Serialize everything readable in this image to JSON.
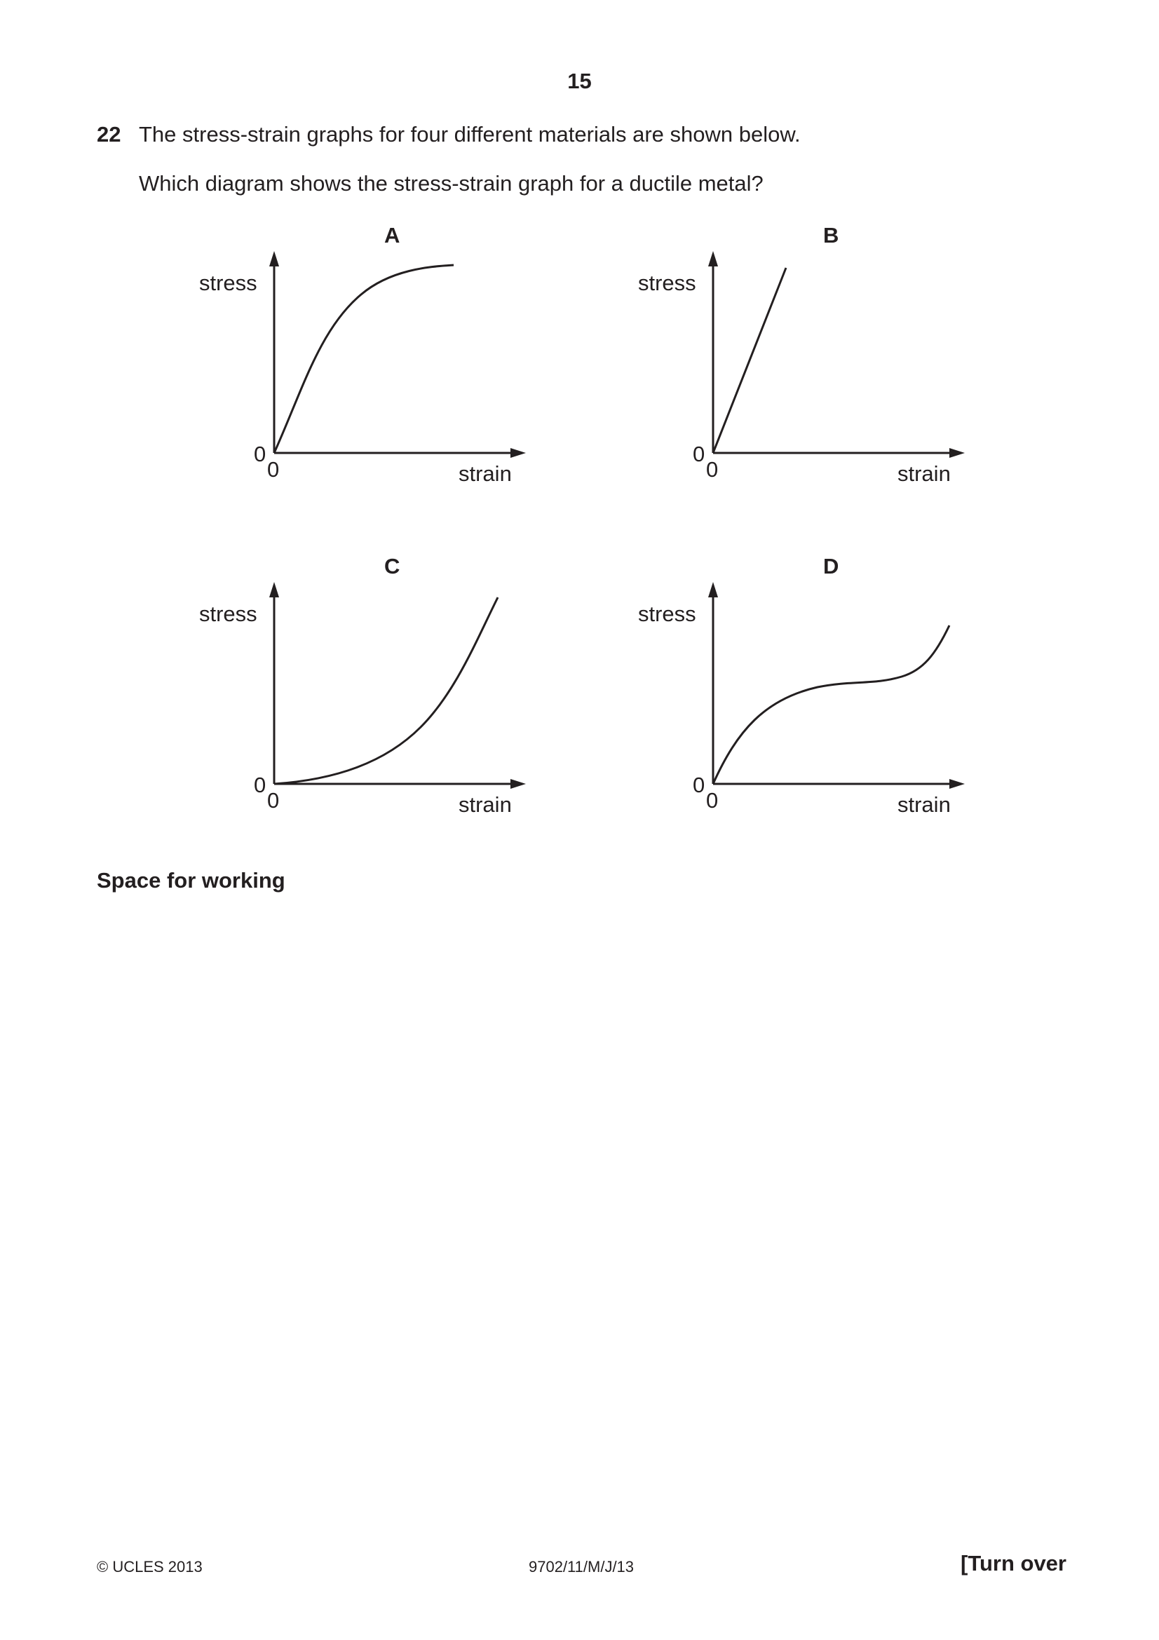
{
  "page": {
    "number": "15",
    "question_number": "22",
    "question_text": "The stress-strain graphs for four different materials are shown below.",
    "question_prompt": "Which diagram shows the stress-strain graph for a ductile metal?",
    "space_for_working": "Space for working"
  },
  "diagrams": [
    {
      "option": "A",
      "y_label": "stress",
      "x_label": "strain",
      "y_origin": "0",
      "x_origin": "0",
      "shape": "rises steeply then levels off"
    },
    {
      "option": "B",
      "y_label": "stress",
      "x_label": "strain",
      "y_origin": "0",
      "x_origin": "0",
      "shape": "straight line through origin"
    },
    {
      "option": "C",
      "y_label": "stress",
      "x_label": "strain",
      "y_origin": "0",
      "x_origin": "0",
      "shape": "curves upward increasingly steeply"
    },
    {
      "option": "D",
      "y_label": "stress",
      "x_label": "strain",
      "y_origin": "0",
      "x_origin": "0",
      "shape": "rises, plateaus, then rises again"
    }
  ],
  "footer": {
    "copyright": "© UCLES 2013",
    "code": "9702/11/M/J/13",
    "turn_over": "[Turn over"
  }
}
